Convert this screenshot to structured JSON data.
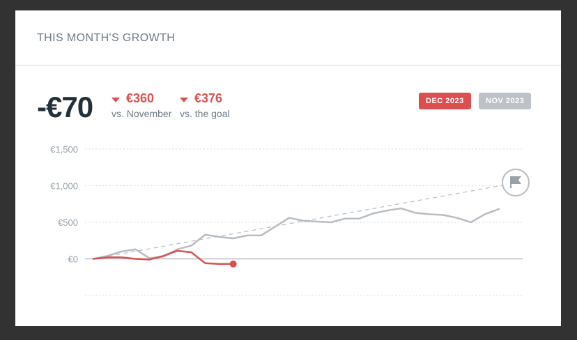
{
  "header": {
    "title": "THIS MONTH'S GROWTH"
  },
  "kpi": {
    "value": "-€70"
  },
  "deltas": [
    {
      "value": "€360",
      "label": "vs. November",
      "direction": "down"
    },
    {
      "value": "€376",
      "label": "vs. the goal",
      "direction": "down"
    }
  ],
  "period_tags": [
    {
      "label": "DEC 2023",
      "active": true
    },
    {
      "label": "NOV 2023",
      "active": false
    }
  ],
  "icons": {
    "goal": "flag-icon",
    "trend": "caret-down-icon"
  },
  "colors": {
    "current": "#dd4f4f",
    "previous": "#b7bdc2",
    "goal": "#b7bdc2",
    "text_dark": "#22303a",
    "text_muted": "#6d7a86"
  },
  "chart_data": {
    "type": "line",
    "ylim": [
      -500,
      1500
    ],
    "yticks": [
      0,
      500,
      1000,
      1500
    ],
    "ytick_labels": [
      "€0",
      "€500",
      "€1,000",
      "€1,500"
    ],
    "days": 31,
    "grid": true,
    "series": [
      {
        "key": "current",
        "x": [
          1,
          2,
          3,
          4,
          5,
          6,
          7,
          8,
          9,
          10,
          11
        ],
        "values": [
          0,
          20,
          20,
          0,
          -10,
          40,
          110,
          90,
          -60,
          -70,
          -70
        ]
      },
      {
        "key": "previous",
        "x": [
          1,
          2,
          3,
          4,
          5,
          6,
          7,
          8,
          9,
          10,
          11,
          12,
          13,
          14,
          15,
          16,
          17,
          18,
          19,
          20,
          21,
          22,
          23,
          24,
          25,
          26,
          27,
          28,
          29,
          30
        ],
        "values": [
          0,
          40,
          100,
          130,
          10,
          30,
          130,
          180,
          330,
          300,
          280,
          320,
          320,
          440,
          560,
          520,
          510,
          500,
          550,
          550,
          620,
          660,
          690,
          630,
          610,
          600,
          560,
          500,
          610,
          680
        ]
      },
      {
        "key": "goal",
        "x": [
          1,
          31
        ],
        "values": [
          0,
          1030
        ]
      }
    ]
  }
}
